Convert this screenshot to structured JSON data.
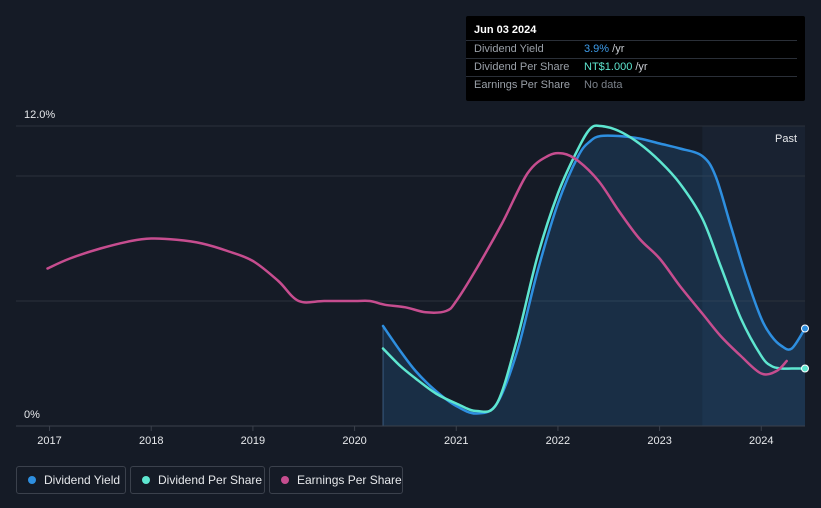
{
  "tooltip": {
    "date": "Jun 03 2024",
    "rows": [
      {
        "label": "Dividend Yield",
        "value": "3.9%",
        "unit": " /yr",
        "color": "#3d9be9"
      },
      {
        "label": "Dividend Per Share",
        "value": "NT$1.000",
        "unit": " /yr",
        "color": "#5ee6d0"
      },
      {
        "label": "Earnings Per Share",
        "value": "No data",
        "unit": "",
        "color": "#7b818a"
      }
    ]
  },
  "legend": [
    {
      "label": "Dividend Yield",
      "color": "#2e8fe0"
    },
    {
      "label": "Dividend Per Share",
      "color": "#5ee6d0"
    },
    {
      "label": "Earnings Per Share",
      "color": "#c64d8f"
    }
  ],
  "chart_data": {
    "type": "line",
    "title": "",
    "xlabel": "",
    "ylabel": "",
    "x_ticks": [
      "2017",
      "2018",
      "2019",
      "2020",
      "2021",
      "2022",
      "2023",
      "2024"
    ],
    "xlim": [
      2016.67,
      2024.43
    ],
    "ylim": [
      0,
      12
    ],
    "y_ticks": [
      {
        "value": 12,
        "label": "12.0%"
      },
      {
        "value": 0,
        "label": "0%"
      }
    ],
    "gridlines": [
      12,
      10,
      5
    ],
    "past_label": "Past",
    "past_start": 2023.42,
    "series": [
      {
        "name": "Dividend Yield",
        "color": "#2e8fe0",
        "area": true,
        "x": [
          2020.28,
          2020.45,
          2020.6,
          2020.8,
          2021.0,
          2021.2,
          2021.4,
          2021.6,
          2021.8,
          2022.0,
          2022.2,
          2022.32,
          2022.42,
          2022.6,
          2022.8,
          2023.0,
          2023.2,
          2023.42,
          2023.55,
          2023.7,
          2023.85,
          2024.0,
          2024.1,
          2024.2,
          2024.3,
          2024.43
        ],
        "y": [
          4.0,
          3.0,
          2.2,
          1.4,
          0.8,
          0.5,
          0.9,
          3.0,
          6.2,
          8.9,
          10.8,
          11.4,
          11.6,
          11.6,
          11.5,
          11.3,
          11.1,
          10.8,
          10.0,
          8.0,
          6.0,
          4.3,
          3.6,
          3.2,
          3.1,
          3.9
        ]
      },
      {
        "name": "Dividend Per Share",
        "color": "#5ee6d0",
        "area": false,
        "x": [
          2020.28,
          2020.45,
          2020.6,
          2020.8,
          2021.0,
          2021.2,
          2021.4,
          2021.6,
          2021.8,
          2022.0,
          2022.2,
          2022.32,
          2022.42,
          2022.6,
          2022.8,
          2023.0,
          2023.2,
          2023.42,
          2023.6,
          2023.8,
          2024.0,
          2024.1,
          2024.2,
          2024.3,
          2024.43
        ],
        "y": [
          3.1,
          2.4,
          1.9,
          1.3,
          0.9,
          0.6,
          0.9,
          3.5,
          6.8,
          9.3,
          11.1,
          11.9,
          12.0,
          11.8,
          11.3,
          10.6,
          9.7,
          8.3,
          6.4,
          4.3,
          2.8,
          2.4,
          2.3,
          2.3,
          2.3
        ]
      },
      {
        "name": "Earnings Per Share",
        "color": "#c64d8f",
        "area": false,
        "x": [
          2016.98,
          2017.2,
          2017.5,
          2017.8,
          2018.0,
          2018.25,
          2018.5,
          2018.75,
          2019.0,
          2019.25,
          2019.45,
          2019.7,
          2020.0,
          2020.15,
          2020.3,
          2020.5,
          2020.7,
          2020.9,
          2021.0,
          2021.2,
          2021.45,
          2021.7,
          2021.9,
          2022.05,
          2022.2,
          2022.4,
          2022.6,
          2022.8,
          2023.0,
          2023.2,
          2023.42,
          2023.6,
          2023.8,
          2024.0,
          2024.15,
          2024.25
        ],
        "y": [
          6.3,
          6.7,
          7.1,
          7.4,
          7.5,
          7.45,
          7.3,
          7.0,
          6.6,
          5.8,
          5.0,
          5.0,
          5.0,
          5.0,
          4.85,
          4.75,
          4.55,
          4.6,
          5.0,
          6.3,
          8.1,
          10.1,
          10.8,
          10.9,
          10.6,
          9.8,
          8.6,
          7.5,
          6.7,
          5.6,
          4.5,
          3.6,
          2.8,
          2.1,
          2.2,
          2.6
        ]
      }
    ]
  }
}
